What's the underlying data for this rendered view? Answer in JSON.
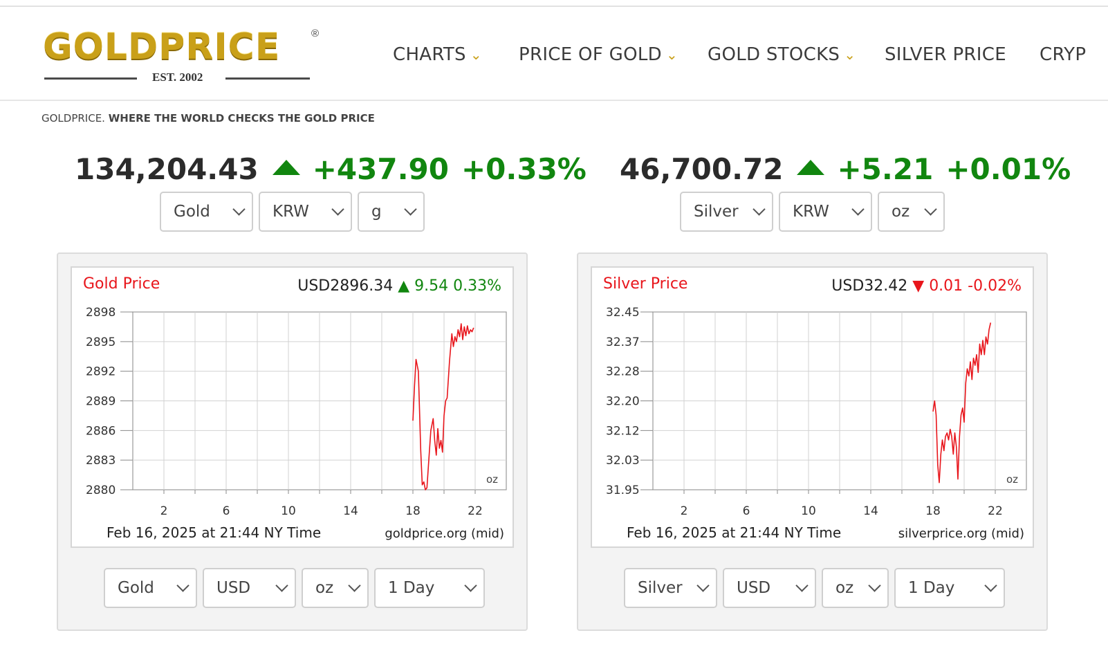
{
  "logo": {
    "text": "GOLDPRICE",
    "registered": "®",
    "est": "EST. 2002"
  },
  "nav": {
    "items": [
      {
        "label": "CHARTS",
        "has_dropdown": true
      },
      {
        "label": "PRICE OF GOLD",
        "has_dropdown": true
      },
      {
        "label": "GOLD STOCKS",
        "has_dropdown": true
      },
      {
        "label": "SILVER PRICE",
        "has_dropdown": false
      },
      {
        "label": "CRYP",
        "has_dropdown": false
      }
    ]
  },
  "tagline": {
    "brand": "GOLDPRICE.",
    "text": "WHERE THE WORLD CHECKS THE GOLD PRICE"
  },
  "gold_quote": {
    "price": "134,204.43",
    "change": "+437.90",
    "percent": "+0.33%",
    "direction": "up",
    "selectors": {
      "metal": "Gold",
      "currency": "KRW",
      "unit": "g"
    }
  },
  "silver_quote": {
    "price": "46,700.72",
    "change": "+5.21",
    "percent": "+0.01%",
    "direction": "up",
    "selectors": {
      "metal": "Silver",
      "currency": "KRW",
      "unit": "oz"
    }
  },
  "gold_chart_controls": {
    "metal": "Gold",
    "currency": "USD",
    "unit": "oz",
    "range": "1 Day"
  },
  "silver_chart_controls": {
    "metal": "Silver",
    "currency": "USD",
    "unit": "oz",
    "range": "1 Day"
  },
  "colors": {
    "accent_gold": "#c9a019",
    "up_green": "#11860f",
    "chart_red": "#e8151b"
  },
  "chart_data": [
    {
      "type": "line",
      "title": "Gold Price",
      "quote": {
        "price": "USD2896.34",
        "change": "9.54",
        "percent": "0.33%",
        "direction": "up"
      },
      "timestamp": "Feb 16, 2025 at 21:44 NY Time",
      "source": "goldprice.org (mid)",
      "unit_label": "oz",
      "xlim": [
        0,
        24
      ],
      "ylim": [
        2880,
        2898
      ],
      "x_ticks": [
        2,
        6,
        10,
        14,
        18,
        22
      ],
      "y_ticks": [
        "2880",
        "2883",
        "2886",
        "2889",
        "2892",
        "2895",
        "2898"
      ],
      "series": [
        {
          "x": [
            18.0,
            18.1,
            18.2,
            18.35,
            18.5,
            18.6,
            18.7,
            18.8,
            18.9,
            19.0,
            19.15,
            19.3,
            19.4,
            19.5,
            19.6,
            19.7,
            19.8,
            19.9,
            20.0,
            20.1,
            20.2,
            20.35,
            20.5,
            20.6,
            20.7,
            20.8,
            20.9,
            21.0,
            21.1,
            21.2,
            21.3,
            21.4,
            21.5,
            21.6,
            21.7,
            21.8,
            21.9
          ],
          "y": [
            2887.0,
            2890.5,
            2893.2,
            2892.0,
            2884.0,
            2880.5,
            2880.8,
            2880.0,
            2880.2,
            2882.5,
            2886.0,
            2887.2,
            2885.0,
            2883.5,
            2886.2,
            2884.2,
            2885.0,
            2883.8,
            2887.5,
            2889.0,
            2889.3,
            2893.0,
            2895.8,
            2894.5,
            2895.5,
            2895.0,
            2896.2,
            2895.5,
            2896.8,
            2895.2,
            2896.5,
            2895.6,
            2896.6,
            2895.8,
            2896.2,
            2896.0,
            2896.4
          ]
        }
      ]
    },
    {
      "type": "line",
      "title": "Silver Price",
      "quote": {
        "price": "USD32.42",
        "change": "0.01",
        "percent": "-0.02%",
        "direction": "down"
      },
      "timestamp": "Feb 16, 2025 at 21:44 NY Time",
      "source": "silverprice.org (mid)",
      "unit_label": "oz",
      "xlim": [
        0,
        24
      ],
      "ylim": [
        31.95,
        32.45
      ],
      "x_ticks": [
        2,
        6,
        10,
        14,
        18,
        22
      ],
      "y_ticks": [
        "31.95",
        "32.03",
        "32.12",
        "32.20",
        "32.28",
        "32.37",
        "32.45"
      ],
      "series": [
        {
          "x": [
            18.0,
            18.1,
            18.2,
            18.3,
            18.4,
            18.5,
            18.6,
            18.7,
            18.8,
            18.9,
            19.0,
            19.1,
            19.2,
            19.3,
            19.4,
            19.5,
            19.6,
            19.7,
            19.8,
            19.9,
            20.0,
            20.1,
            20.2,
            20.3,
            20.4,
            20.5,
            20.6,
            20.7,
            20.8,
            20.9,
            21.0,
            21.1,
            21.2,
            21.3,
            21.4,
            21.5,
            21.6,
            21.7
          ],
          "y": [
            32.17,
            32.2,
            32.16,
            32.02,
            31.97,
            32.05,
            32.09,
            32.06,
            32.1,
            32.11,
            32.09,
            32.12,
            32.1,
            32.05,
            32.11,
            32.07,
            31.98,
            32.1,
            32.16,
            32.18,
            32.14,
            32.25,
            32.29,
            32.27,
            32.31,
            32.26,
            32.32,
            32.3,
            32.33,
            32.28,
            32.36,
            32.33,
            32.37,
            32.33,
            32.38,
            32.36,
            32.4,
            32.42
          ]
        }
      ]
    }
  ]
}
